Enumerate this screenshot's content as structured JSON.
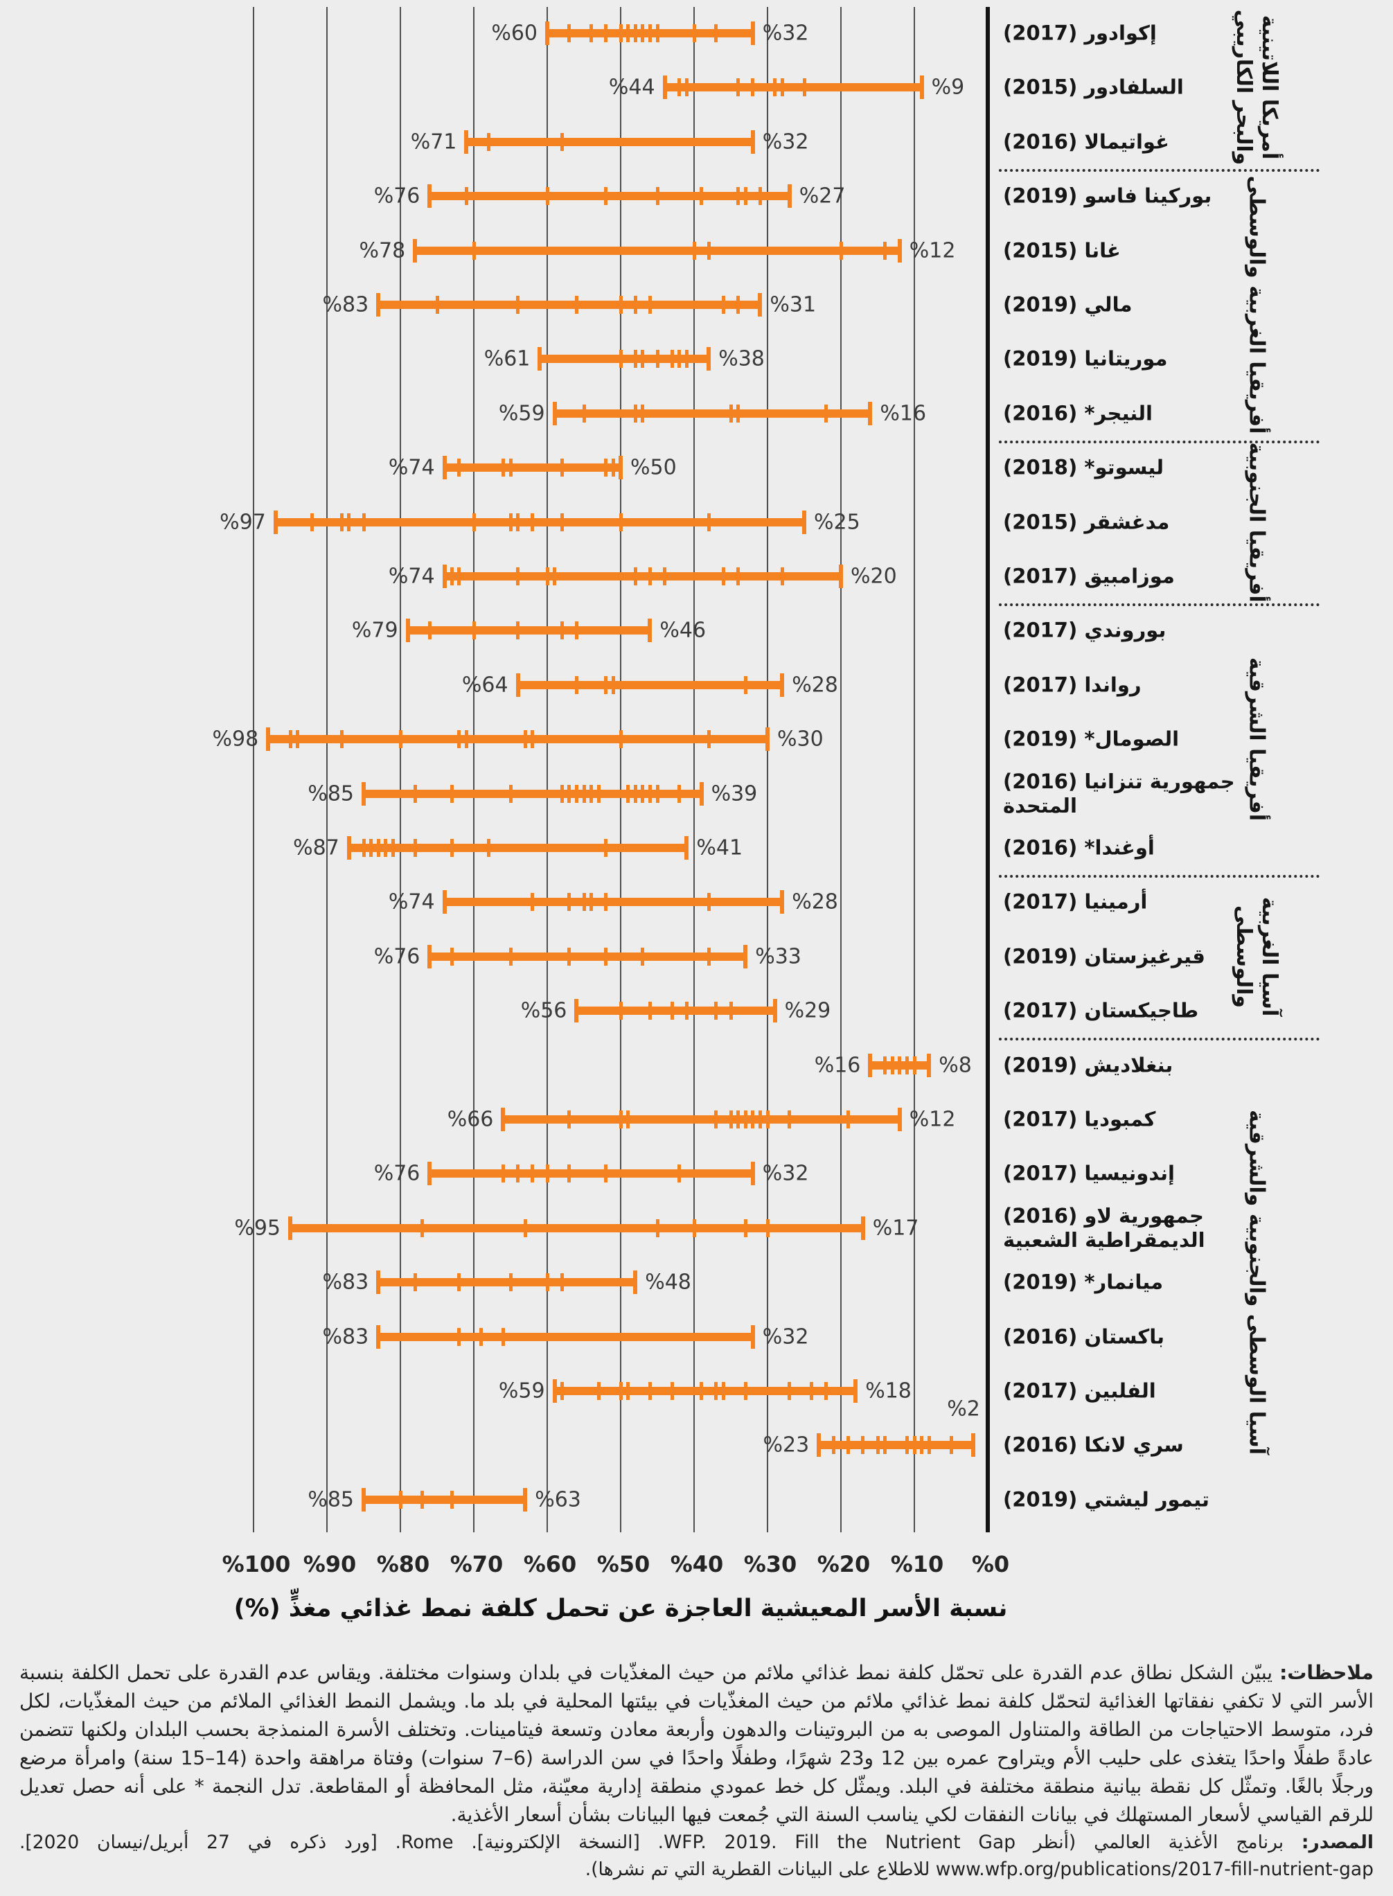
{
  "colors": {
    "background": "#EDEDED",
    "range_orange": "#F58220",
    "gridline": "#4F4F4F",
    "axis_black": "#141414",
    "text_dark": "#161616",
    "value_label": "#3A3A3A"
  },
  "chart_data": {
    "type": "dumbbell-range",
    "orientation": "horizontal-rtl",
    "grid": true,
    "xlabel": "نسبة الأسر المعيشية العاجزة عن تحمل كلفة نمط غذائي مغذٍّ (%)",
    "x_axis": {
      "range": [
        0,
        100
      ],
      "direction": "right-to-left",
      "ticks": [
        {
          "label": "%100",
          "value": 100
        },
        {
          "label": "%90",
          "value": 90
        },
        {
          "label": "%80",
          "value": 80
        },
        {
          "label": "%70",
          "value": 70
        },
        {
          "label": "%60",
          "value": 60
        },
        {
          "label": "%50",
          "value": 50
        },
        {
          "label": "%40",
          "value": 40
        },
        {
          "label": "%30",
          "value": 30
        },
        {
          "label": "%20",
          "value": 20
        },
        {
          "label": "%10",
          "value": 10
        },
        {
          "label": "%0",
          "value": 0
        }
      ]
    },
    "regions": [
      {
        "name_lines": "أمريكا اللاتينية\nوالبحر الكاريبي",
        "countries": [
          {
            "label": "إكوادور (2017)",
            "max": 60,
            "min": 32,
            "max_label": "%60",
            "min_label": "%32",
            "ticks": [
              37,
              40,
              45,
              46,
              47,
              48,
              49,
              50,
              52,
              54,
              57
            ]
          },
          {
            "label": "السلفادور (2015)",
            "max": 44,
            "min": 9,
            "max_label": "%44",
            "min_label": "%9",
            "ticks": [
              25,
              28,
              29,
              32,
              34,
              41,
              42
            ]
          },
          {
            "label": "غواتيمالا (2016)",
            "max": 71,
            "min": 32,
            "max_label": "%71",
            "min_label": "%32",
            "ticks": [
              58,
              68
            ]
          }
        ]
      },
      {
        "name_lines": "أفريقيا الغربية والوسطى",
        "countries": [
          {
            "label": "بوركينا فاسو (2019)",
            "max": 76,
            "min": 27,
            "max_label": "%76",
            "min_label": "%27",
            "ticks": [
              71,
              60,
              52,
              45,
              39,
              34,
              33,
              31
            ]
          },
          {
            "label": "غانا (2015)",
            "max": 78,
            "min": 12,
            "max_label": "%78",
            "min_label": "%12",
            "ticks": [
              70,
              40,
              38,
              20,
              14
            ]
          },
          {
            "label": "مالي (2019)",
            "max": 83,
            "min": 31,
            "max_label": "%83",
            "min_label": "%31",
            "ticks": [
              75,
              64,
              56,
              50,
              48,
              46,
              36,
              34
            ]
          },
          {
            "label": "موريتانيا (2019)",
            "max": 61,
            "min": 38,
            "max_label": "%61",
            "min_label": "%38",
            "ticks": [
              50,
              48,
              47,
              45,
              43,
              42,
              41
            ]
          },
          {
            "label": "النيجر* (2016)",
            "max": 59,
            "min": 16,
            "max_label": "%59",
            "min_label": "%16",
            "ticks": [
              55,
              48,
              47,
              35,
              34,
              22
            ]
          }
        ]
      },
      {
        "name_lines": "أفريقيا الجنوبية",
        "countries": [
          {
            "label": "ليسوتو* (2018)",
            "max": 74,
            "min": 50,
            "max_label": "%74",
            "min_label": "%50",
            "ticks": [
              72,
              66,
              65,
              58,
              52,
              51
            ]
          },
          {
            "label": "مدغشقر (2015)",
            "max": 97,
            "min": 25,
            "max_label": "%97",
            "min_label": "%25",
            "ticks": [
              92,
              88,
              87,
              85,
              70,
              65,
              64,
              62,
              58,
              50,
              38
            ]
          },
          {
            "label": "موزامبيق (2017)",
            "max": 74,
            "min": 20,
            "max_label": "%74",
            "min_label": "%20",
            "ticks": [
              73,
              72,
              64,
              60,
              59,
              48,
              46,
              44,
              36,
              34,
              28
            ]
          }
        ]
      },
      {
        "name_lines": "أفريقيا الشرقية",
        "countries": [
          {
            "label": "بوروندي (2017)",
            "max": 79,
            "min": 46,
            "max_label": "%79",
            "min_label": "%46",
            "ticks": [
              76,
              70,
              64,
              58,
              56
            ]
          },
          {
            "label": "رواندا (2017)",
            "max": 64,
            "min": 28,
            "max_label": "%64",
            "min_label": "%28",
            "ticks": [
              56,
              52,
              51,
              33
            ]
          },
          {
            "label": "الصومال* (2019)",
            "max": 98,
            "min": 30,
            "max_label": "%98",
            "min_label": "%30",
            "ticks": [
              95,
              94,
              88,
              80,
              72,
              71,
              63,
              62,
              50,
              38
            ]
          },
          {
            "label": "جمهورية تنزانيا (2016)\nالمتحدة",
            "max": 85,
            "min": 39,
            "max_label": "%85",
            "min_label": "%39",
            "ticks": [
              78,
              73,
              65,
              58,
              57,
              56,
              55,
              54,
              53,
              49,
              48,
              47,
              46,
              45,
              42
            ]
          },
          {
            "label": "أوغندا* (2016)",
            "max": 87,
            "min": 41,
            "max_label": "%87",
            "min_label": "%41",
            "ticks": [
              85,
              84,
              83,
              82,
              81,
              78,
              73,
              68,
              52
            ]
          }
        ]
      },
      {
        "name_lines": "آسيا الغربية\nوالوسطى",
        "countries": [
          {
            "label": "أرمينيا (2017)",
            "max": 74,
            "min": 28,
            "max_label": "%74",
            "min_label": "%28",
            "ticks": [
              62,
              57,
              55,
              54,
              52,
              38
            ]
          },
          {
            "label": "قيرغيزستان (2019)",
            "max": 76,
            "min": 33,
            "max_label": "%76",
            "min_label": "%33",
            "ticks": [
              73,
              65,
              57,
              52,
              47,
              38
            ]
          },
          {
            "label": "طاجيكستان (2017)",
            "max": 56,
            "min": 29,
            "max_label": "%56",
            "min_label": "%29",
            "ticks": [
              50,
              46,
              43,
              41,
              37,
              35
            ]
          }
        ]
      },
      {
        "name_lines": "آسيا الوسطى والجنوبية والشرقية",
        "countries": [
          {
            "label": "بنغلاديش (2019)",
            "max": 16,
            "min": 8,
            "max_label": "%16",
            "min_label": "%8",
            "ticks": [
              14,
              13,
              12,
              11,
              10
            ]
          },
          {
            "label": "كمبوديا (2017)",
            "max": 66,
            "min": 12,
            "max_label": "%66",
            "min_label": "%12",
            "ticks": [
              57,
              50,
              49,
              37,
              35,
              34,
              33,
              32,
              31,
              30,
              27,
              19
            ]
          },
          {
            "label": "إندونيسيا (2017)",
            "max": 76,
            "min": 32,
            "max_label": "%76",
            "min_label": "%32",
            "ticks": [
              66,
              64,
              62,
              60,
              57,
              52,
              42
            ]
          },
          {
            "label": "جمهورية لاو (2016)\nالديمقراطية الشعبية",
            "max": 95,
            "min": 17,
            "max_label": "%95",
            "min_label": "%17",
            "ticks": [
              77,
              63,
              45,
              40,
              33,
              30
            ]
          },
          {
            "label": "ميانمار* (2019)",
            "max": 83,
            "min": 48,
            "max_label": "%83",
            "min_label": "%48",
            "ticks": [
              78,
              72,
              65,
              60,
              58
            ]
          },
          {
            "label": "باكستان (2016)",
            "max": 83,
            "min": 32,
            "max_label": "%83",
            "min_label": "%32",
            "ticks": [
              72,
              69,
              66
            ]
          },
          {
            "label": "الفلبين (2017)",
            "max": 59,
            "min": 18,
            "max_label": "%59",
            "min_label": "%18",
            "ticks": [
              58,
              53,
              50,
              49,
              46,
              43,
              39,
              37,
              36,
              33,
              27,
              24,
              22
            ]
          },
          {
            "label": "سري لانكا (2016)",
            "max": 23,
            "min": 2,
            "max_label": "%23",
            "min_label": "%2",
            "min_label_position": "above",
            "ticks": [
              21,
              19,
              17,
              15,
              14,
              11,
              10,
              9,
              8,
              5
            ]
          },
          {
            "label": "تيمور ليشتي (2019)",
            "max": 85,
            "min": 63,
            "max_label": "%85",
            "min_label": "%63",
            "ticks": [
              80,
              77,
              73
            ]
          }
        ]
      }
    ]
  },
  "notes": {
    "label": "ملاحظات:",
    "body": " يبيّن الشكل نطاق عدم القدرة على تحمّل كلفة نمط غذائي ملائم من حيث المغذّيات في بلدان وسنوات مختلفة. ويقاس عدم القدرة على تحمل الكلفة بنسبة الأسر التي لا تكفي نفقاتها الغذائية لتحمّل كلفة نمط غذائي ملائم من حيث المغذّيات في بيئتها المحلية في بلد ما. ويشمل النمط الغذائي الملائم من حيث المغذّيات، لكل فرد، متوسط الاحتياجات من الطاقة والمتناول الموصى به من البروتينات والدهون وأربعة معادن وتسعة فيتامينات. وتختلف الأسرة المنمذجة بحسب البلدان ولكنها تتضمن عادةً طفلًا واحدًا يتغذى على حليب الأم ويتراوح عمره بين 12 و23 شهرًا، وطفلًا واحدًا في سن الدراسة (6–7 سنوات) وفتاة مراهقة واحدة (14–15 سنة) وامرأة مرضع ورجلًا بالغًا. وتمثّل كل نقطة بيانية منطقة مختلفة في البلد. ويمثّل كل خط عمودي منطقة إدارية معيّنة، مثل المحافظة أو المقاطعة. تدل النجمة * على أنه حصل تعديل للرقم القياسي لأسعار المستهلك في بيانات النفقات لكي يناسب السنة التي جُمعت فيها البيانات بشأن أسعار الأغذية."
  },
  "source": {
    "label": "المصدر:",
    "body": " برنامج الأغذية العالمي (أنظر WFP. 2019. Fill the Nutrient Gap. [النسخة الإلكترونية]. Rome. [ورد ذكره في 27 أبريل/نيسان 2020]. www.wfp.org/publications/2017-fill-nutrient-gap للاطلاع على البيانات القطرية التي تم نشرها)."
  }
}
